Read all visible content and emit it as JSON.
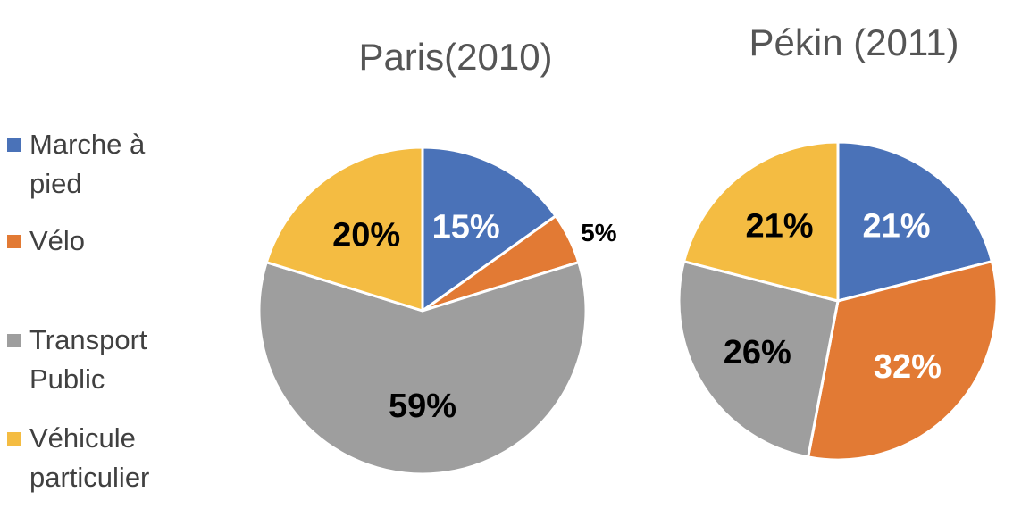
{
  "chart_data": [
    {
      "type": "pie",
      "title": "Paris(2010)",
      "categories": [
        "Marche à pied",
        "Vélo",
        "Transport Public",
        "Véhicule particulier"
      ],
      "values": [
        15,
        5,
        59,
        20
      ],
      "labels": [
        "15%",
        "5%",
        "59%",
        "20%"
      ],
      "legend": "left"
    },
    {
      "type": "pie",
      "title": "Pékin (2011)",
      "categories": [
        "Marche à pied",
        "Vélo",
        "Transport Public",
        "Véhicule particulier"
      ],
      "values": [
        21,
        32,
        26,
        21
      ],
      "labels": [
        "21%",
        "32%",
        "26%",
        "21%"
      ],
      "legend": "left"
    }
  ],
  "legend": [
    {
      "label": "Marche à\npied",
      "color": "#4A72B8"
    },
    {
      "label": "Vélo",
      "color": "#E27A34"
    },
    {
      "label": "Transport\nPublic",
      "color": "#9E9E9E"
    },
    {
      "label": "Véhicule\nparticulier",
      "color": "#F4BC42"
    }
  ],
  "colors": [
    "#4A72B8",
    "#E27A34",
    "#9E9E9E",
    "#F4BC42"
  ],
  "label_colors": {
    "paris": [
      "#ffffff",
      "#000000",
      "#000000",
      "#000000"
    ],
    "pekin": [
      "#ffffff",
      "#ffffff",
      "#000000",
      "#000000"
    ]
  }
}
